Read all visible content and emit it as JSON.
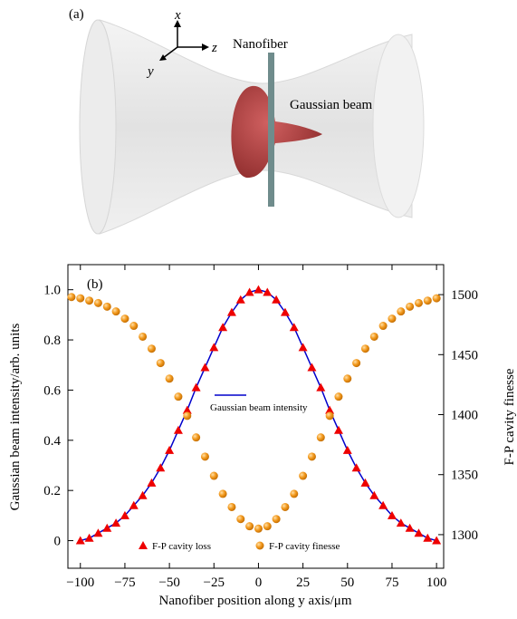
{
  "panel_a": {
    "label": "(a)",
    "axis_x": "x",
    "axis_y": "y",
    "axis_z": "z",
    "fiber_label": "Nanofiber",
    "beam_label": "Gaussian beam"
  },
  "chart_data": {
    "type": "mixed",
    "panel_label": "(b)",
    "x_label": "Nanofiber position along y axis/μm",
    "y_label": "Gaussian beam intensity/arb. units",
    "y2_label": "F-P cavity finesse",
    "xlim": [
      -107,
      104
    ],
    "xticks": [
      {
        "value": -100,
        "label": "−100"
      },
      {
        "value": -75,
        "label": "−75"
      },
      {
        "value": -50,
        "label": "−50"
      },
      {
        "value": -25,
        "label": "−25"
      },
      0,
      25,
      50,
      75,
      100
    ],
    "ylim": [
      -0.11,
      1.1
    ],
    "yticks": [
      0,
      0.2,
      0.4,
      0.6,
      0.8,
      {
        "value": 1,
        "label": "1.0"
      }
    ],
    "y2lim": [
      1272,
      1525
    ],
    "y2ticks": [
      1300,
      1350,
      1400,
      1450,
      1500
    ],
    "series": [
      {
        "name": "Gaussian beam intensity",
        "kind": "line",
        "color": "#0000cc",
        "x": [
          -100,
          -95,
          -90,
          -85,
          -80,
          -75,
          -70,
          -65,
          -60,
          -55,
          -50,
          -45,
          -40,
          -35,
          -30,
          -25,
          -20,
          -15,
          -10,
          -5,
          0,
          5,
          10,
          15,
          20,
          25,
          30,
          35,
          40,
          45,
          50,
          55,
          60,
          65,
          70,
          75,
          80,
          85,
          90,
          95,
          100
        ],
        "values": [
          0.0,
          0.01,
          0.03,
          0.05,
          0.07,
          0.1,
          0.14,
          0.18,
          0.23,
          0.29,
          0.36,
          0.44,
          0.52,
          0.61,
          0.69,
          0.77,
          0.85,
          0.91,
          0.96,
          0.99,
          1.0,
          0.99,
          0.96,
          0.91,
          0.85,
          0.77,
          0.69,
          0.61,
          0.52,
          0.44,
          0.36,
          0.29,
          0.23,
          0.18,
          0.14,
          0.1,
          0.07,
          0.05,
          0.03,
          0.01,
          0.0
        ]
      },
      {
        "name": "F-P cavity loss",
        "kind": "triangle",
        "color": "#ee0000",
        "x": [
          -100,
          -95,
          -90,
          -85,
          -80,
          -75,
          -70,
          -65,
          -60,
          -55,
          -50,
          -45,
          -40,
          -35,
          -30,
          -25,
          -20,
          -15,
          -10,
          -5,
          0,
          5,
          10,
          15,
          20,
          25,
          30,
          35,
          40,
          45,
          50,
          55,
          60,
          65,
          70,
          75,
          80,
          85,
          90,
          95,
          100
        ],
        "values": [
          0.0,
          0.01,
          0.03,
          0.05,
          0.07,
          0.1,
          0.14,
          0.18,
          0.23,
          0.29,
          0.36,
          0.44,
          0.52,
          0.61,
          0.69,
          0.77,
          0.85,
          0.91,
          0.96,
          0.99,
          1.0,
          0.99,
          0.96,
          0.91,
          0.85,
          0.77,
          0.69,
          0.61,
          0.52,
          0.44,
          0.36,
          0.29,
          0.23,
          0.18,
          0.14,
          0.1,
          0.07,
          0.05,
          0.03,
          0.01,
          0.0
        ]
      },
      {
        "name": "F-P cavity finesse",
        "kind": "circle",
        "color": "#f39a1e",
        "axis": "y2",
        "x": [
          -105,
          -100,
          -95,
          -90,
          -85,
          -80,
          -75,
          -70,
          -65,
          -60,
          -55,
          -50,
          -45,
          -40,
          -35,
          -30,
          -25,
          -20,
          -15,
          -10,
          -5,
          0,
          5,
          10,
          15,
          20,
          25,
          30,
          35,
          40,
          45,
          50,
          55,
          60,
          65,
          70,
          75,
          80,
          85,
          90,
          95,
          100
        ],
        "values": [
          1498,
          1497,
          1495,
          1493,
          1490,
          1486,
          1480,
          1474,
          1465,
          1455,
          1443,
          1430,
          1415,
          1399,
          1381,
          1365,
          1349,
          1334,
          1323,
          1313,
          1307,
          1305,
          1307,
          1313,
          1323,
          1334,
          1349,
          1365,
          1381,
          1399,
          1415,
          1430,
          1443,
          1455,
          1465,
          1474,
          1480,
          1486,
          1490,
          1493,
          1495,
          1497
        ]
      }
    ]
  }
}
